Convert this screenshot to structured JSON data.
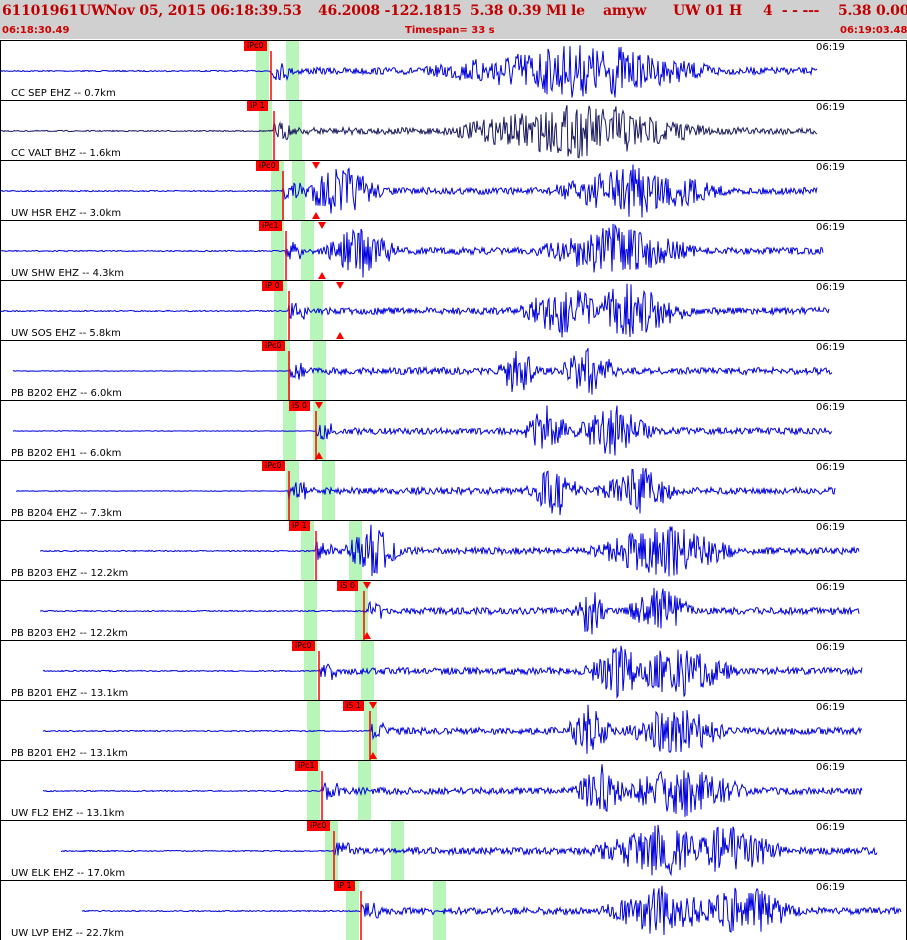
{
  "header": {
    "event_id": "61101961",
    "network": "UW",
    "datetime": "Nov 05, 2015 06:18:39.53",
    "location": "46.2008 -122.1815",
    "depth_mag": "5.38 0.39 Ml le",
    "analyst": "amyw",
    "source": "UW 01 H",
    "quality": "4  - - ---",
    "extra": "5.38 0.00",
    "start_time": "06:18:30.49",
    "timespan": "Timespan=  33 s",
    "end_time": "06:19:03.48"
  },
  "colors": {
    "header_bg": "#d0d0d0",
    "title_text": "#c00000",
    "trace_blue": "#0000dd",
    "trace_dark": "#1a1a60",
    "pick_red": "#ff0000",
    "window_green": "#b8f5b8"
  },
  "traces": [
    {
      "label": "CC SEP EHZ -- 0.7km",
      "time": "06:19",
      "color": "#0000dd",
      "pick": "iPc0",
      "pick_sec": 9.0,
      "start_sec": 0.0,
      "end_sec": 27.2,
      "windows": [
        8.7,
        9.7
      ],
      "s_sec": null,
      "bursts": [
        [
          19.1,
          5.0
        ],
        [
          20.5,
          1.6
        ]
      ]
    },
    {
      "label": "CC VALT BHZ -- 1.6km",
      "time": "06:19",
      "color": "#1a1a60",
      "pick": "iP 1",
      "pick_sec": 9.1,
      "start_sec": 0.0,
      "end_sec": 27.2,
      "windows": [
        8.8,
        9.8
      ],
      "s_sec": null,
      "bursts": [
        [
          19.2,
          4.5
        ],
        [
          20.6,
          1.6
        ]
      ]
    },
    {
      "label": "UW HSR EHZ -- 3.0km",
      "time": "06:19",
      "color": "#0000dd",
      "pick": "iPc0",
      "pick_sec": 9.4,
      "start_sec": 0.0,
      "end_sec": 27.2,
      "windows": [
        9.2,
        9.9
      ],
      "s_sec": 10.5,
      "bursts": [
        [
          11.3,
          1.5
        ],
        [
          21.2,
          3.0
        ]
      ]
    },
    {
      "label": "UW SHW EHZ -- 4.3km",
      "time": "06:19",
      "color": "#0000dd",
      "pick": "iPc1",
      "pick_sec": 9.5,
      "start_sec": 0.0,
      "end_sec": 27.4,
      "windows": [
        9.2,
        10.2
      ],
      "s_sec": 10.7,
      "bursts": [
        [
          12.0,
          1.3
        ],
        [
          20.5,
          2.8
        ]
      ]
    },
    {
      "label": "UW SOS EHZ -- 5.8km",
      "time": "06:19",
      "color": "#0000dd",
      "pick": "iP 0",
      "pick_sec": 9.6,
      "start_sec": 0.0,
      "end_sec": 27.6,
      "windows": [
        9.3,
        10.5
      ],
      "s_sec": 11.3,
      "bursts": [
        [
          18.8,
          1.6
        ],
        [
          20.9,
          2.2
        ]
      ]
    },
    {
      "label": "PB B202 EHZ -- 6.0km",
      "time": "06:19",
      "color": "#0000dd",
      "pick": "iPc0",
      "pick_sec": 9.6,
      "start_sec": 0.4,
      "end_sec": 27.7,
      "windows": [
        9.4,
        10.6
      ],
      "s_sec": null,
      "bursts": [
        [
          17.2,
          0.7
        ],
        [
          19.6,
          1.0
        ]
      ]
    },
    {
      "label": "PB B202 EH1 -- 6.0km",
      "time": "06:19",
      "color": "#0000dd",
      "pick": "iS 0",
      "pick_sec": 10.5,
      "start_sec": 0.4,
      "end_sec": 27.7,
      "windows": [
        9.6,
        10.6
      ],
      "s_sec": 10.6,
      "bursts": [
        [
          18.2,
          0.8
        ],
        [
          20.4,
          1.4
        ]
      ]
    },
    {
      "label": "PB B204 EHZ -- 7.3km",
      "time": "06:19",
      "color": "#0000dd",
      "pick": "iPc0",
      "pick_sec": 9.6,
      "start_sec": 0.5,
      "end_sec": 27.8,
      "windows": [
        9.7,
        10.9
      ],
      "s_sec": null,
      "bursts": [
        [
          18.5,
          1.0
        ],
        [
          21.2,
          1.4
        ]
      ]
    },
    {
      "label": "PB B203 EHZ -- 12.2km",
      "time": "06:19",
      "color": "#0000dd",
      "pick": "iP 1",
      "pick_sec": 10.5,
      "start_sec": 1.3,
      "end_sec": 28.6,
      "windows": [
        10.2,
        11.8
      ],
      "s_sec": null,
      "bursts": [
        [
          12.4,
          1.0
        ],
        [
          22.1,
          2.6
        ]
      ]
    },
    {
      "label": "PB B203 EH2 -- 12.2km",
      "time": "06:19",
      "color": "#0000dd",
      "pick": "iS 0",
      "pick_sec": 12.1,
      "start_sec": 1.3,
      "end_sec": 28.6,
      "windows": [
        10.3,
        12.0
      ],
      "s_sec": 12.2,
      "bursts": [
        [
          19.6,
          0.6
        ],
        [
          22.0,
          1.2
        ]
      ]
    },
    {
      "label": "PB B201 EHZ -- 13.1km",
      "time": "06:19",
      "color": "#0000dd",
      "pick": "iPc0",
      "pick_sec": 10.6,
      "start_sec": 1.4,
      "end_sec": 28.7,
      "windows": [
        10.3,
        12.2
      ],
      "s_sec": null,
      "bursts": [
        [
          20.6,
          1.2
        ],
        [
          22.6,
          2.0
        ]
      ]
    },
    {
      "label": "PB B201 EH2 -- 13.1km",
      "time": "06:19",
      "color": "#0000dd",
      "pick": "iS 1",
      "pick_sec": 12.3,
      "start_sec": 1.4,
      "end_sec": 28.7,
      "windows": [
        10.4,
        12.3
      ],
      "s_sec": 12.4,
      "bursts": [
        [
          22.5,
          1.8
        ],
        [
          19.6,
          0.8
        ]
      ]
    },
    {
      "label": "UW FL2 EHZ -- 13.1km",
      "time": "06:19",
      "color": "#0000dd",
      "pick": "iPc1",
      "pick_sec": 10.7,
      "start_sec": 1.4,
      "end_sec": 28.7,
      "windows": [
        10.4,
        12.1
      ],
      "s_sec": null,
      "bursts": [
        [
          22.7,
          2.3
        ],
        [
          20.0,
          1.0
        ]
      ]
    },
    {
      "label": "UW ELK EHZ -- 17.0km",
      "time": "06:19",
      "color": "#0000dd",
      "pick": "iPc0",
      "pick_sec": 11.1,
      "start_sec": 2.0,
      "end_sec": 29.2,
      "windows": [
        11.0,
        13.2
      ],
      "s_sec": null,
      "bursts": [
        [
          22.0,
          2.4
        ],
        [
          24.2,
          2.0
        ]
      ]
    },
    {
      "label": "UW LVP EHZ -- 22.7km",
      "time": "06:19",
      "color": "#0000dd",
      "pick": "iP 1",
      "pick_sec": 12.0,
      "start_sec": 2.7,
      "end_sec": 30.0,
      "windows": [
        11.7,
        14.6
      ],
      "s_sec": null,
      "bursts": [
        [
          22.0,
          2.0
        ],
        [
          24.8,
          2.0
        ]
      ]
    }
  ]
}
